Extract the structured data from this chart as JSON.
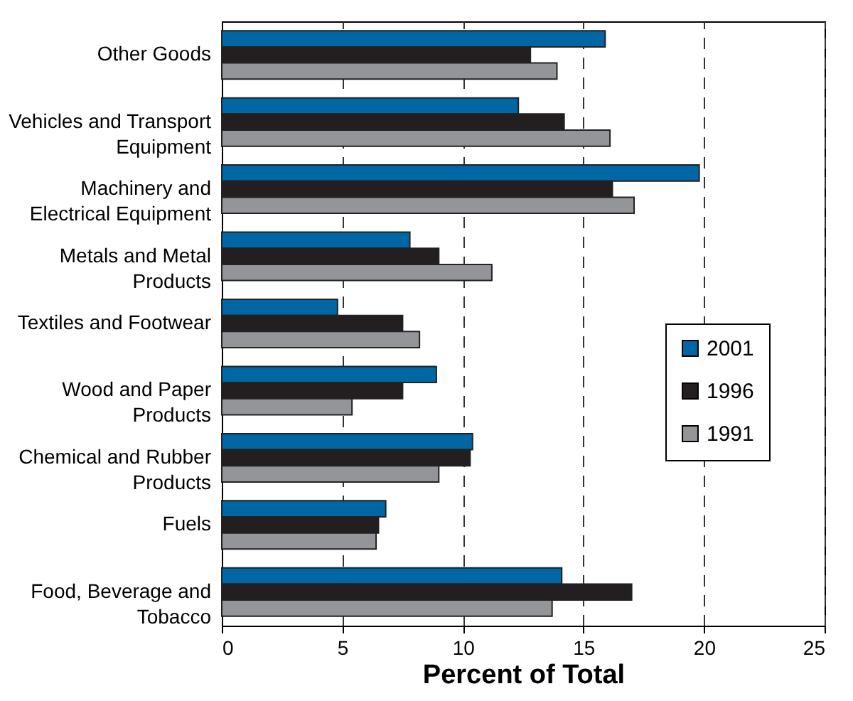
{
  "chart_data": {
    "type": "bar",
    "orientation": "horizontal",
    "xlabel": "Percent of Total",
    "categories": [
      "Other Goods",
      "Vehicles and Transport Equipment",
      "Machinery and Electrical Equipment",
      "Metals and Metal Products",
      "Textiles and Footwear",
      "Wood and Paper Products",
      "Chemical and Rubber Products",
      "Fuels",
      "Food, Beverage and Tobacco"
    ],
    "series": [
      {
        "name": "2001",
        "color": "#0066a4",
        "values": [
          15.9,
          12.3,
          19.8,
          7.8,
          4.8,
          8.9,
          10.4,
          6.8,
          14.1
        ]
      },
      {
        "name": "1996",
        "color": "#231f20",
        "values": [
          12.8,
          14.2,
          16.2,
          9.0,
          7.5,
          7.5,
          10.3,
          6.5,
          17.0
        ]
      },
      {
        "name": "1991",
        "color": "#939598",
        "values": [
          13.9,
          16.1,
          17.1,
          11.2,
          8.2,
          5.4,
          9.0,
          6.4,
          13.7
        ]
      }
    ],
    "xlim": [
      0,
      25
    ],
    "xticks": [
      0,
      5,
      10,
      15,
      20,
      25
    ],
    "grid": "x",
    "legend": "right"
  }
}
